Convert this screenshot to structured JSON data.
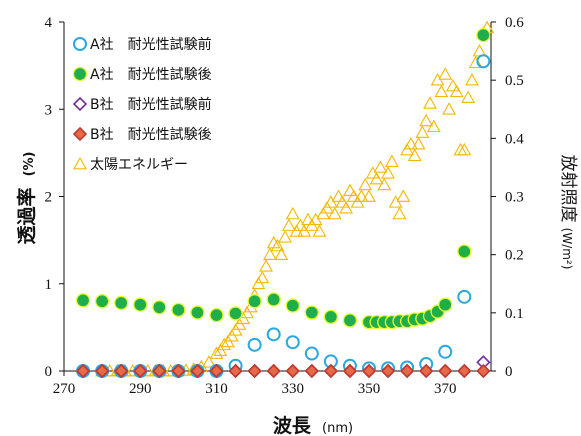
{
  "chart_data": {
    "type": "scatter",
    "xlabel": "波長",
    "xlabel_unit": "(nm)",
    "ylabel": "透過率",
    "ylabel_unit": "(%)",
    "y2label": "放射照度",
    "y2label_unit": "(W/m²)",
    "xlim": [
      270,
      382
    ],
    "ylim": [
      0,
      4
    ],
    "y2lim": [
      0,
      0.6
    ],
    "x_ticks": [
      270,
      290,
      310,
      330,
      350,
      370
    ],
    "y_ticks": [
      0,
      1,
      2,
      3,
      4
    ],
    "y2_ticks": [
      0,
      0.1,
      0.2,
      0.3,
      0.4,
      0.5,
      0.6
    ],
    "grid": false,
    "legend_position": "top-left",
    "series": [
      {
        "name": "A社　耐光性試験前",
        "marker": "circle-open",
        "color": "#29a9e0",
        "axis": "left",
        "points": [
          [
            275,
            0
          ],
          [
            280,
            0
          ],
          [
            285,
            0
          ],
          [
            290,
            0
          ],
          [
            295,
            0
          ],
          [
            300,
            0
          ],
          [
            305,
            0
          ],
          [
            310,
            0
          ],
          [
            315,
            0.06
          ],
          [
            320,
            0.3
          ],
          [
            325,
            0.42
          ],
          [
            330,
            0.33
          ],
          [
            335,
            0.2
          ],
          [
            340,
            0.11
          ],
          [
            345,
            0.06
          ],
          [
            350,
            0.03
          ],
          [
            355,
            0.03
          ],
          [
            360,
            0.04
          ],
          [
            365,
            0.08
          ],
          [
            370,
            0.22
          ],
          [
            375,
            0.85
          ],
          [
            380,
            3.55
          ]
        ]
      },
      {
        "name": "A社　耐光性試験後",
        "marker": "circle-filled",
        "color": "#1fae4b",
        "edge": "#e8ff2a",
        "axis": "left",
        "points": [
          [
            275,
            0.81
          ],
          [
            280,
            0.8
          ],
          [
            285,
            0.78
          ],
          [
            290,
            0.76
          ],
          [
            295,
            0.73
          ],
          [
            300,
            0.7
          ],
          [
            305,
            0.67
          ],
          [
            310,
            0.64
          ],
          [
            315,
            0.66
          ],
          [
            320,
            0.8
          ],
          [
            325,
            0.82
          ],
          [
            330,
            0.75
          ],
          [
            335,
            0.67
          ],
          [
            340,
            0.62
          ],
          [
            345,
            0.58
          ],
          [
            350,
            0.56
          ],
          [
            352,
            0.56
          ],
          [
            354,
            0.56
          ],
          [
            356,
            0.56
          ],
          [
            358,
            0.57
          ],
          [
            360,
            0.57
          ],
          [
            362,
            0.59
          ],
          [
            364,
            0.6
          ],
          [
            366,
            0.63
          ],
          [
            368,
            0.68
          ],
          [
            370,
            0.76
          ],
          [
            375,
            1.37
          ],
          [
            380,
            3.85
          ]
        ]
      },
      {
        "name": "B社　耐光性試験前",
        "marker": "diamond-open",
        "color": "#7030a0",
        "axis": "left",
        "points": [
          [
            275,
            0
          ],
          [
            280,
            0
          ],
          [
            285,
            0
          ],
          [
            290,
            0
          ],
          [
            295,
            0
          ],
          [
            300,
            0
          ],
          [
            305,
            0
          ],
          [
            310,
            0
          ],
          [
            315,
            0
          ],
          [
            320,
            0
          ],
          [
            325,
            0
          ],
          [
            330,
            0
          ],
          [
            335,
            0
          ],
          [
            340,
            0
          ],
          [
            345,
            0
          ],
          [
            350,
            0
          ],
          [
            355,
            0
          ],
          [
            360,
            0
          ],
          [
            365,
            0
          ],
          [
            370,
            0
          ],
          [
            375,
            0
          ],
          [
            380,
            0.1
          ]
        ]
      },
      {
        "name": "B社　耐光性試験後",
        "marker": "diamond-filled",
        "color": "#e56a4a",
        "edge": "#c0392b",
        "axis": "left",
        "points": [
          [
            275,
            0
          ],
          [
            280,
            0
          ],
          [
            285,
            0
          ],
          [
            290,
            0
          ],
          [
            295,
            0
          ],
          [
            300,
            0
          ],
          [
            305,
            0
          ],
          [
            310,
            0
          ],
          [
            315,
            0
          ],
          [
            320,
            0
          ],
          [
            325,
            0
          ],
          [
            330,
            0
          ],
          [
            335,
            0
          ],
          [
            340,
            0
          ],
          [
            345,
            0
          ],
          [
            350,
            0
          ],
          [
            355,
            0
          ],
          [
            360,
            0
          ],
          [
            365,
            0
          ],
          [
            370,
            0
          ],
          [
            375,
            0
          ],
          [
            380,
            0
          ]
        ]
      },
      {
        "name": "太陽エネルギー",
        "marker": "triangle-open",
        "color": "#f5b800",
        "axis": "right",
        "points": [
          [
            280,
            0
          ],
          [
            282,
            0
          ],
          [
            284,
            0
          ],
          [
            286,
            0
          ],
          [
            288,
            0
          ],
          [
            290,
            0
          ],
          [
            292,
            0
          ],
          [
            294,
            0
          ],
          [
            296,
            0
          ],
          [
            298,
            0
          ],
          [
            300,
            0
          ],
          [
            302,
            0.001
          ],
          [
            304,
            0.003
          ],
          [
            306,
            0.007
          ],
          [
            308,
            0.015
          ],
          [
            310,
            0.03
          ],
          [
            311,
            0.035
          ],
          [
            312,
            0.045
          ],
          [
            313,
            0.05
          ],
          [
            314,
            0.06
          ],
          [
            315,
            0.07
          ],
          [
            316,
            0.08
          ],
          [
            317,
            0.09
          ],
          [
            318,
            0.1
          ],
          [
            319,
            0.11
          ],
          [
            320,
            0.13
          ],
          [
            321,
            0.15
          ],
          [
            322,
            0.16
          ],
          [
            323,
            0.18
          ],
          [
            324,
            0.2
          ],
          [
            325,
            0.22
          ],
          [
            326,
            0.215
          ],
          [
            327,
            0.2
          ],
          [
            328,
            0.23
          ],
          [
            329,
            0.25
          ],
          [
            330,
            0.27
          ],
          [
            331,
            0.24
          ],
          [
            332,
            0.25
          ],
          [
            333,
            0.24
          ],
          [
            334,
            0.26
          ],
          [
            335,
            0.25
          ],
          [
            336,
            0.26
          ],
          [
            337,
            0.24
          ],
          [
            338,
            0.27
          ],
          [
            339,
            0.28
          ],
          [
            340,
            0.29
          ],
          [
            341,
            0.27
          ],
          [
            342,
            0.3
          ],
          [
            343,
            0.29
          ],
          [
            344,
            0.28
          ],
          [
            345,
            0.31
          ],
          [
            346,
            0.3
          ],
          [
            347,
            0.29
          ],
          [
            348,
            0.3
          ],
          [
            349,
            0.32
          ],
          [
            350,
            0.3
          ],
          [
            351,
            0.34
          ],
          [
            352,
            0.33
          ],
          [
            353,
            0.35
          ],
          [
            354,
            0.32
          ],
          [
            355,
            0.34
          ],
          [
            356,
            0.36
          ],
          [
            357,
            0.29
          ],
          [
            358,
            0.27
          ],
          [
            359,
            0.3
          ],
          [
            360,
            0.38
          ],
          [
            361,
            0.39
          ],
          [
            362,
            0.37
          ],
          [
            363,
            0.39
          ],
          [
            364,
            0.41
          ],
          [
            365,
            0.43
          ],
          [
            366,
            0.46
          ],
          [
            367,
            0.42
          ],
          [
            368,
            0.5
          ],
          [
            369,
            0.48
          ],
          [
            370,
            0.51
          ],
          [
            371,
            0.45
          ],
          [
            372,
            0.49
          ],
          [
            373,
            0.48
          ],
          [
            374,
            0.38
          ],
          [
            375,
            0.38
          ],
          [
            376,
            0.47
          ],
          [
            377,
            0.5
          ],
          [
            378,
            0.53
          ],
          [
            379,
            0.55
          ],
          [
            380,
            0.58
          ],
          [
            381,
            0.59
          ]
        ]
      }
    ]
  }
}
